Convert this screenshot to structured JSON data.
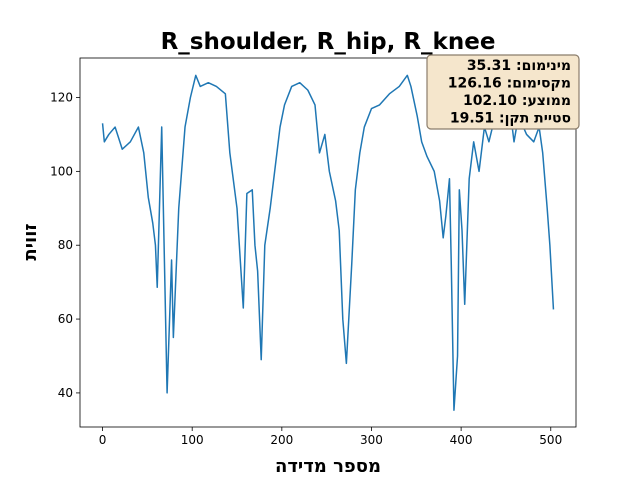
{
  "chart_data": {
    "type": "line",
    "title": "R_shoulder, R_hip, R_knee",
    "x_label": "מספר מדידה",
    "y_label": "זווית",
    "x": [
      0,
      2,
      7,
      14,
      22,
      31,
      40,
      46,
      51,
      56,
      59,
      61,
      66,
      72,
      77,
      79,
      85,
      92,
      98,
      104,
      109,
      118,
      127,
      137,
      142,
      150,
      157,
      161,
      167,
      170,
      173,
      177,
      181,
      187,
      192,
      198,
      203,
      211,
      220,
      229,
      237,
      242,
      248,
      253,
      260,
      264,
      268,
      272,
      278,
      282,
      287,
      292,
      300,
      309,
      320,
      331,
      340,
      344,
      351,
      356,
      362,
      370,
      376,
      380,
      383,
      387,
      389,
      392,
      396,
      398,
      401,
      404,
      409,
      414,
      420,
      426,
      431,
      437,
      442,
      448,
      453,
      459,
      464,
      473,
      481,
      487,
      491,
      496,
      499,
      503
    ],
    "series": [
      {
        "name": "R_shoulder, R_hip, R_knee",
        "color": "#1f77b4",
        "values": [
          113,
          108,
          110,
          112,
          106,
          108,
          112,
          105,
          93,
          86,
          80,
          68.6,
          112,
          40,
          76,
          55,
          90,
          112,
          120,
          126,
          123,
          124,
          123,
          121,
          105,
          90,
          63,
          94,
          95,
          80,
          73,
          49,
          80,
          90,
          100,
          112,
          118,
          123,
          124,
          122,
          118,
          105,
          110,
          100,
          92,
          84,
          60,
          48,
          75,
          95,
          105,
          112,
          117,
          118,
          121,
          123,
          126,
          123,
          115,
          108,
          104,
          100,
          92,
          82,
          88,
          98,
          75,
          35.31,
          50,
          95,
          84,
          64,
          98,
          108,
          100,
          112,
          108,
          114,
          118,
          125,
          120,
          108,
          115,
          110,
          108,
          112,
          105,
          90,
          80,
          62.6
        ]
      }
    ],
    "xlim": [
      -25.15,
      528.15
    ],
    "xticks": [
      0,
      100,
      200,
      300,
      400,
      500
    ],
    "ylim": [
      30.77,
      130.7
    ],
    "yticks": [
      40,
      60,
      80,
      100,
      120
    ],
    "stats": [
      "מינימום: 35.31",
      "מקסימום: 126.16",
      "ממוצע: 102.10",
      "סטיית תקן: 19.51"
    ]
  }
}
